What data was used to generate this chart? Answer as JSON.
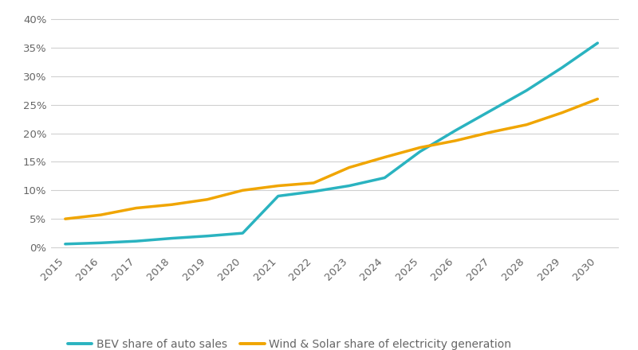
{
  "years": [
    2015,
    2016,
    2017,
    2018,
    2019,
    2020,
    2021,
    2022,
    2023,
    2024,
    2025,
    2026,
    2027,
    2028,
    2029,
    2030
  ],
  "bev_share": [
    0.006,
    0.008,
    0.011,
    0.016,
    0.02,
    0.025,
    0.09,
    0.098,
    0.108,
    0.122,
    0.168,
    0.205,
    0.24,
    0.275,
    0.315,
    0.358
  ],
  "wind_solar_share": [
    0.05,
    0.057,
    0.069,
    0.075,
    0.084,
    0.1,
    0.108,
    0.113,
    0.14,
    0.158,
    0.175,
    0.187,
    0.202,
    0.215,
    0.236,
    0.26
  ],
  "bev_color": "#2ab3c0",
  "wind_solar_color": "#f0a500",
  "bev_label": "BEV share of auto sales",
  "wind_solar_label": "Wind & Solar share of electricity generation",
  "yticks": [
    0.0,
    0.05,
    0.1,
    0.15,
    0.2,
    0.25,
    0.3,
    0.35,
    0.4
  ],
  "ytick_labels": [
    "0%",
    "5%",
    "10%",
    "15%",
    "20%",
    "25%",
    "30%",
    "35%",
    "40%"
  ],
  "ylim": [
    -0.008,
    0.415
  ],
  "xlim": [
    2014.6,
    2030.6
  ],
  "line_width": 2.5,
  "background_color": "#ffffff",
  "grid_color": "#d0d0d0",
  "tick_label_color": "#666666",
  "tick_label_fontsize": 9.5,
  "legend_fontsize": 10
}
